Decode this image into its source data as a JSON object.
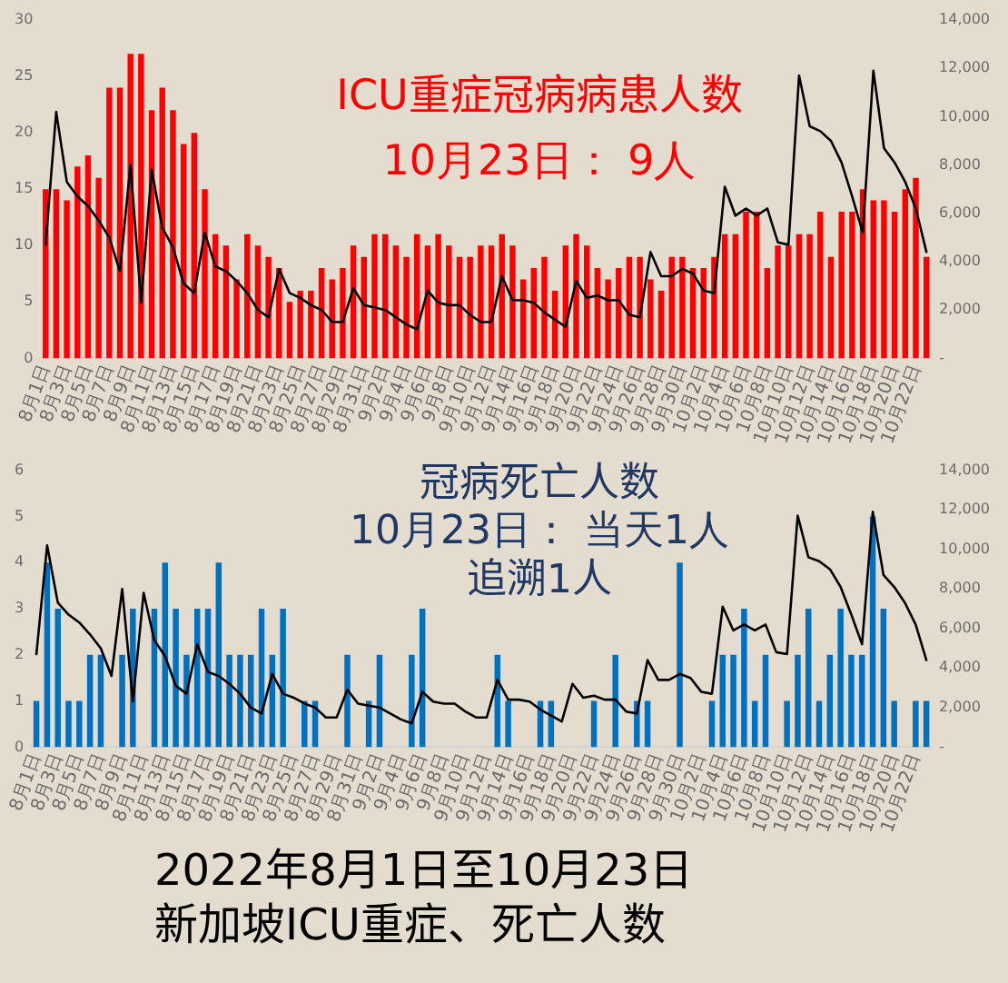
{
  "chart_data": [
    {
      "type": "bar",
      "title": "ICU重症冠病病患人数",
      "subtitle": "10月23日： 9人",
      "categories": [
        "8月1日",
        null,
        "8月3日",
        null,
        "8月5日",
        null,
        "8月7日",
        null,
        "8月9日",
        null,
        "8月11日",
        null,
        "8月13日",
        null,
        "8月15日",
        null,
        "8月17日",
        null,
        "8月19日",
        null,
        "8月21日",
        null,
        "8月23日",
        null,
        "8月25日",
        null,
        "8月27日",
        null,
        "8月29日",
        null,
        "8月31日",
        null,
        "9月2日",
        null,
        "9月4日",
        null,
        "9月6日",
        null,
        "9月8日",
        null,
        "9月10日",
        null,
        "9月12日",
        null,
        "9月14日",
        null,
        "9月16日",
        null,
        "9月18日",
        null,
        "9月20日",
        null,
        "9月22日",
        null,
        "9月24日",
        null,
        "9月26日",
        null,
        "9月28日",
        null,
        "9月30日",
        null,
        "10月2日",
        null,
        "10月4日",
        null,
        "10月6日",
        null,
        "10月8日",
        null,
        "10月10日",
        null,
        "10月12日",
        null,
        "10月14日",
        null,
        "10月16日",
        null,
        "10月18日",
        null,
        "10月20日",
        null,
        "10月22日",
        null
      ],
      "series": [
        {
          "type": "bar",
          "color": "#ff0000",
          "values": [
            15,
            15,
            14,
            17,
            18,
            16,
            24,
            24,
            27,
            27,
            22,
            24,
            22,
            19,
            20,
            15,
            11,
            10,
            7,
            11,
            10,
            9,
            8,
            5,
            6,
            6,
            8,
            7,
            8,
            10,
            9,
            11,
            11,
            10,
            9,
            11,
            10,
            11,
            10,
            9,
            9,
            10,
            10,
            11,
            10,
            7,
            8,
            9,
            6,
            10,
            11,
            10,
            8,
            7,
            8,
            9,
            9,
            7,
            6,
            9,
            9,
            8,
            8,
            9,
            11,
            11,
            13,
            13,
            8,
            10,
            10,
            11,
            11,
            13,
            9,
            13,
            13,
            15,
            14,
            14,
            13,
            15,
            16,
            9
          ]
        },
        {
          "type": "line",
          "color": "#000000",
          "axis": "y2",
          "values": [
            4700,
            10200,
            7300,
            6700,
            6300,
            5700,
            5000,
            3600,
            8000,
            2300,
            7800,
            5400,
            4600,
            3100,
            2700,
            5200,
            3800,
            3600,
            3200,
            2700,
            2000,
            1700,
            3700,
            2700,
            2500,
            2200,
            2000,
            1500,
            1500,
            2900,
            2200,
            2100,
            2000,
            1700,
            1400,
            1200,
            2800,
            2300,
            2200,
            2200,
            1800,
            1500,
            1500,
            3400,
            2400,
            2400,
            2300,
            1900,
            1600,
            1300,
            3200,
            2500,
            2600,
            2400,
            2400,
            1800,
            1700,
            4400,
            3400,
            3400,
            3700,
            3500,
            2800,
            2700,
            7100,
            5900,
            6200,
            5900,
            6200,
            4800,
            4700,
            11700,
            9600,
            9400,
            9000,
            8100,
            6700,
            5200,
            11900,
            8700,
            8100,
            7300,
            6200,
            4400
          ]
        }
      ],
      "ylim": [
        0,
        30
      ],
      "yticks": [
        0,
        5,
        10,
        15,
        20,
        25,
        30
      ],
      "y2lim": [
        0,
        14000
      ],
      "y2ticks": [
        {
          "value": 0,
          "label": "-"
        },
        {
          "value": 2000,
          "label": "2,000"
        },
        {
          "value": 4000,
          "label": "4,000"
        },
        {
          "value": 6000,
          "label": "6,000"
        },
        {
          "value": 8000,
          "label": "8,000"
        },
        {
          "value": 10000,
          "label": "10,000"
        },
        {
          "value": 12000,
          "label": "12,000"
        },
        {
          "value": 14000,
          "label": "14,000"
        }
      ]
    },
    {
      "type": "bar",
      "title": "冠病死亡人数",
      "subtitle": "10月23日： 当天1人",
      "annotations": [
        "追溯1人"
      ],
      "categories": [
        "8月1日",
        null,
        "8月3日",
        null,
        "8月5日",
        null,
        "8月7日",
        null,
        "8月9日",
        null,
        "8月11日",
        null,
        "8月13日",
        null,
        "8月15日",
        null,
        "8月17日",
        null,
        "8月19日",
        null,
        "8月21日",
        null,
        "8月23日",
        null,
        "8月25日",
        null,
        "8月27日",
        null,
        "8月29日",
        null,
        "8月31日",
        null,
        "9月2日",
        null,
        "9月4日",
        null,
        "9月6日",
        null,
        "9月8日",
        null,
        "9月10日",
        null,
        "9月12日",
        null,
        "9月14日",
        null,
        "9月16日",
        null,
        "9月18日",
        null,
        "9月20日",
        null,
        "9月22日",
        null,
        "9月24日",
        null,
        "9月26日",
        null,
        "9月28日",
        null,
        "9月30日",
        null,
        "10月2日",
        null,
        "10月4日",
        null,
        "10月6日",
        null,
        "10月8日",
        null,
        "10月10日",
        null,
        "10月12日",
        null,
        "10月14日",
        null,
        "10月16日",
        null,
        "10月18日",
        null,
        "10月20日",
        null,
        "10月22日",
        null
      ],
      "series": [
        {
          "type": "bar",
          "color": "#0070c0",
          "values": [
            1,
            4,
            3,
            1,
            1,
            2,
            2,
            0,
            2,
            3,
            0,
            3,
            4,
            3,
            2,
            3,
            3,
            4,
            2,
            2,
            2,
            3,
            2,
            3,
            0,
            1,
            1,
            0,
            0,
            2,
            0,
            1,
            2,
            0,
            0,
            2,
            3,
            0,
            0,
            0,
            0,
            0,
            0,
            2,
            1,
            0,
            0,
            1,
            1,
            0,
            0,
            0,
            1,
            0,
            2,
            0,
            1,
            1,
            0,
            0,
            4,
            0,
            0,
            1,
            2,
            2,
            3,
            1,
            2,
            0,
            1,
            2,
            3,
            1,
            2,
            3,
            2,
            2,
            5,
            3,
            1,
            0,
            1,
            1
          ]
        },
        {
          "type": "line",
          "color": "#000000",
          "axis": "y2",
          "values": [
            4700,
            10200,
            7300,
            6700,
            6300,
            5700,
            5000,
            3600,
            8000,
            2300,
            7800,
            5400,
            4600,
            3100,
            2700,
            5200,
            3800,
            3600,
            3200,
            2700,
            2000,
            1700,
            3700,
            2700,
            2500,
            2200,
            2000,
            1500,
            1500,
            2900,
            2200,
            2100,
            2000,
            1700,
            1400,
            1200,
            2800,
            2300,
            2200,
            2200,
            1800,
            1500,
            1500,
            3400,
            2400,
            2400,
            2300,
            1900,
            1600,
            1300,
            3200,
            2500,
            2600,
            2400,
            2400,
            1800,
            1700,
            4400,
            3400,
            3400,
            3700,
            3500,
            2800,
            2700,
            7100,
            5900,
            6200,
            5900,
            6200,
            4800,
            4700,
            11700,
            9600,
            9400,
            9000,
            8100,
            6700,
            5200,
            11900,
            8700,
            8100,
            7300,
            6200,
            4400
          ]
        }
      ],
      "ylim": [
        0,
        6
      ],
      "yticks": [
        0,
        1,
        2,
        3,
        4,
        5,
        6
      ],
      "y2lim": [
        0,
        14000
      ],
      "y2ticks": [
        {
          "value": 0,
          "label": "-"
        },
        {
          "value": 2000,
          "label": "2,000"
        },
        {
          "value": 4000,
          "label": "4,000"
        },
        {
          "value": 6000,
          "label": "6,000"
        },
        {
          "value": 8000,
          "label": "8,000"
        },
        {
          "value": 10000,
          "label": "10,000"
        },
        {
          "value": 12000,
          "label": "12,000"
        },
        {
          "value": 14000,
          "label": "14,000"
        }
      ]
    },
    {
      "type": "other",
      "title": "2022年8月1日至10月23日",
      "subtitle": "新加坡ICU重症、死亡人数"
    }
  ]
}
